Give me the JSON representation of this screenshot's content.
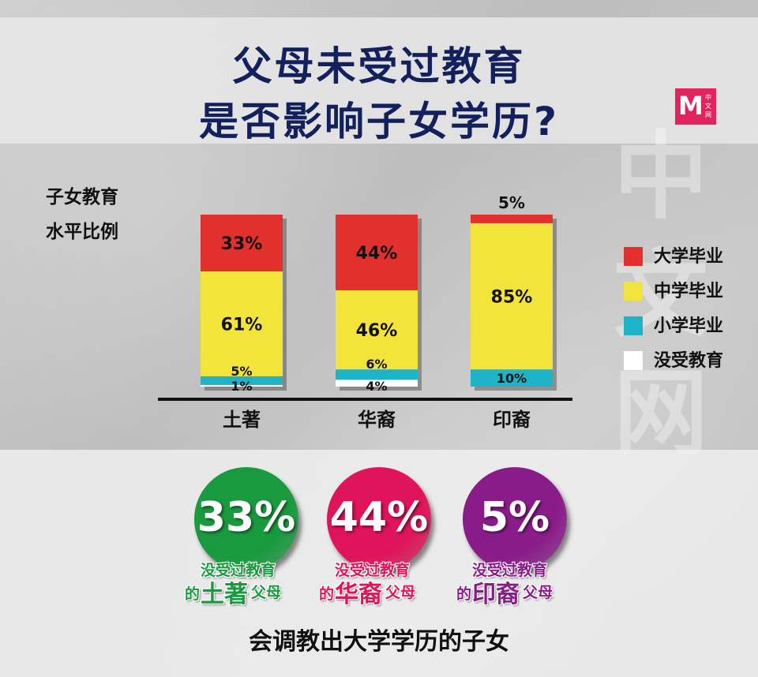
{
  "title_line1": "父母未受过教育",
  "title_line2": "是否影响子女学历?",
  "logo": {
    "letter": "M",
    "sub": "中文网"
  },
  "watermark": "中文网",
  "ylabel_line1": "子女教育",
  "ylabel_line2": "水平比例",
  "colors": {
    "university": "#e2312d",
    "secondary": "#f2e43a",
    "primary": "#1fb3c9",
    "none": "#ffffff",
    "title": "#12205e",
    "malay": "#1a9a3e",
    "chinese": "#e0145a",
    "indian": "#8a1c8a"
  },
  "chart_data": {
    "type": "bar",
    "stacked": true,
    "categories": [
      "土著",
      "华裔",
      "印裔"
    ],
    "series": [
      {
        "name": "没受教育",
        "values": [
          1,
          4,
          0
        ],
        "labels": [
          "1%",
          "4%",
          ""
        ]
      },
      {
        "name": "小学毕业",
        "values": [
          5,
          6,
          10
        ],
        "labels": [
          "5%",
          "6%",
          "10%"
        ]
      },
      {
        "name": "中学毕业",
        "values": [
          61,
          46,
          85
        ],
        "labels": [
          "61%",
          "46%",
          "85%"
        ]
      },
      {
        "name": "大学毕业",
        "values": [
          33,
          44,
          5
        ],
        "labels": [
          "33%",
          "44%",
          "5%"
        ]
      }
    ],
    "legend": [
      "大学毕业",
      "中学毕业",
      "小学毕业",
      "没受教育"
    ],
    "ylabel": "子女教育水平比例",
    "ylim": [
      0,
      100
    ],
    "legend_position": "right"
  },
  "circles": [
    {
      "value": "33%",
      "line1": "没受过教育",
      "pre": "的",
      "group": "土著",
      "post": "父母",
      "color": "#1a9a3e"
    },
    {
      "value": "44%",
      "line1": "没受过教育",
      "pre": "的",
      "group": "华裔",
      "post": "父母",
      "color": "#e0145a"
    },
    {
      "value": "5%",
      "line1": "没受过教育",
      "pre": "的",
      "group": "印裔",
      "post": "父母",
      "color": "#8a1c8a"
    }
  ],
  "footer": "会调教出大学学历的子女"
}
